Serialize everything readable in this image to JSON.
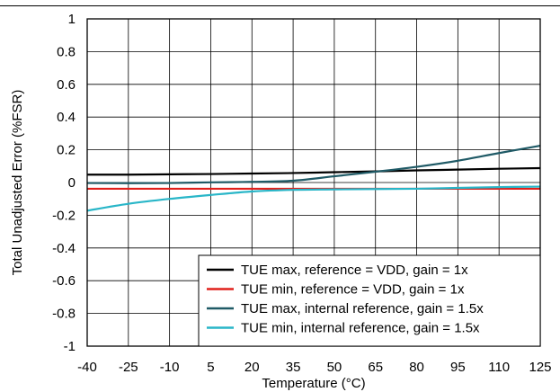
{
  "chart_data": {
    "type": "line",
    "xlabel": "Temperature (°C)",
    "ylabel": "Total Unadjusted Error (%FSR)",
    "xlim": [
      -40,
      125
    ],
    "ylim": [
      -1,
      1
    ],
    "x_ticks": [
      "-40",
      "-25",
      "-10",
      "5",
      "20",
      "35",
      "50",
      "65",
      "80",
      "95",
      "110",
      "125"
    ],
    "y_ticks": [
      "1",
      "0.8",
      "0.6",
      "0.4",
      "0.2",
      "0",
      "-0.2",
      "-0.4",
      "-0.6",
      "-0.8",
      "-1"
    ],
    "grid": true,
    "legend_position": "bottom-right",
    "x": [
      -40,
      -25,
      -10,
      5,
      20,
      35,
      50,
      65,
      80,
      95,
      110,
      125
    ],
    "series": [
      {
        "name": "TUE max, reference = VDD, gain = 1x",
        "color": "#000000",
        "values": [
          0.048,
          0.048,
          0.05,
          0.052,
          0.055,
          0.058,
          0.063,
          0.068,
          0.074,
          0.079,
          0.084,
          0.088
        ]
      },
      {
        "name": "TUE min, reference = VDD, gain = 1x",
        "color": "#e0201b",
        "values": [
          -0.038,
          -0.038,
          -0.038,
          -0.038,
          -0.038,
          -0.038,
          -0.038,
          -0.038,
          -0.038,
          -0.038,
          -0.038,
          -0.038
        ]
      },
      {
        "name": "TUE max, internal reference, gain = 1.5x",
        "color": "#1f5a66",
        "values": [
          -0.003,
          -0.004,
          -0.003,
          0.001,
          0.004,
          0.011,
          0.038,
          0.066,
          0.096,
          0.133,
          0.18,
          0.225
        ]
      },
      {
        "name": "TUE min, internal reference, gain = 1.5x",
        "color": "#29b6c8",
        "values": [
          -0.172,
          -0.13,
          -0.1,
          -0.076,
          -0.055,
          -0.045,
          -0.042,
          -0.04,
          -0.038,
          -0.033,
          -0.028,
          -0.025
        ]
      }
    ]
  }
}
